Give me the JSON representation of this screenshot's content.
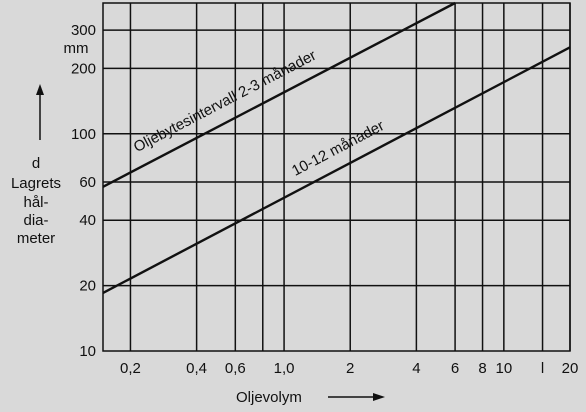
{
  "chart_data": {
    "type": "line",
    "x_scale": "log",
    "y_scale": "log",
    "xlim": [
      0.15,
      20
    ],
    "ylim": [
      10,
      400
    ],
    "x_ticks": [
      {
        "value": 0.2,
        "label": "0,2"
      },
      {
        "value": 0.4,
        "label": "0,4"
      },
      {
        "value": 0.6,
        "label": "0,6"
      },
      {
        "value": 0.8,
        "label": ""
      },
      {
        "value": 1.0,
        "label": "1,0"
      },
      {
        "value": 2,
        "label": "2"
      },
      {
        "value": 4,
        "label": "4"
      },
      {
        "value": 6,
        "label": "6"
      },
      {
        "value": 8,
        "label": "8"
      },
      {
        "value": 10,
        "label": "10"
      },
      {
        "value": 15,
        "label": "l"
      },
      {
        "value": 20,
        "label": "20"
      }
    ],
    "y_ticks": [
      {
        "value": 10,
        "label": "10"
      },
      {
        "value": 20,
        "label": "20"
      },
      {
        "value": 40,
        "label": "40"
      },
      {
        "value": 60,
        "label": "60"
      },
      {
        "value": 100,
        "label": "100"
      },
      {
        "value": 200,
        "label": "200"
      },
      {
        "value": 300,
        "label": "300"
      }
    ],
    "y_unit": "mm",
    "xlabel": "Oljevolym",
    "ylabel_lines": [
      "d",
      "Lagrets",
      "hål-",
      "dia-",
      "meter"
    ],
    "grid": true,
    "series": [
      {
        "name": "Oljebytesintervall 2-3 månader",
        "x": [
          0.15,
          6
        ],
        "y": [
          57,
          400
        ]
      },
      {
        "name": "10-12 månader",
        "x": [
          0.15,
          20
        ],
        "y": [
          18.5,
          250
        ]
      }
    ]
  }
}
